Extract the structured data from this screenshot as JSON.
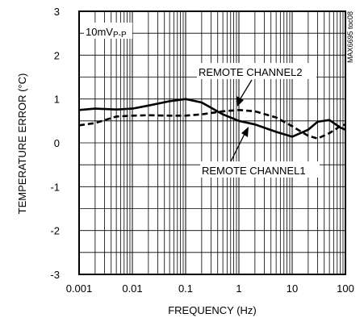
{
  "chart_data": {
    "type": "line",
    "xlabel": "FREQUENCY (Hz)",
    "ylabel": "TEMPERATURE ERROR (°C)",
    "x_scale": "log",
    "xlim": [
      0.001,
      100
    ],
    "ylim": [
      -3,
      3
    ],
    "grid": true,
    "x_ticks": [
      "0.001",
      "0.01",
      "0.1",
      "1",
      "10",
      "100"
    ],
    "y_ticks": [
      "3",
      "2",
      "1",
      "0",
      "-1",
      "-2",
      "-3"
    ],
    "annotations": {
      "condition_main": "10mV",
      "condition_sub": "P-P",
      "doc_code": "MAX6695 toc08"
    },
    "series": [
      {
        "name": "REMOTE CHANNEL1",
        "style": "solid",
        "color": "#000000",
        "x": [
          0.001,
          0.002,
          0.005,
          0.01,
          0.02,
          0.05,
          0.1,
          0.2,
          0.5,
          1,
          2,
          5,
          10,
          20,
          30,
          50,
          80,
          100
        ],
        "y": [
          0.75,
          0.78,
          0.76,
          0.78,
          0.85,
          0.95,
          1.0,
          0.92,
          0.65,
          0.5,
          0.42,
          0.25,
          0.14,
          0.3,
          0.48,
          0.52,
          0.35,
          0.3
        ]
      },
      {
        "name": "REMOTE CHANNEL2",
        "style": "dashed",
        "color": "#000000",
        "x": [
          0.001,
          0.002,
          0.005,
          0.01,
          0.02,
          0.05,
          0.1,
          0.2,
          0.5,
          1,
          2,
          5,
          10,
          15,
          20,
          30,
          50,
          80,
          100
        ],
        "y": [
          0.4,
          0.45,
          0.6,
          0.62,
          0.63,
          0.62,
          0.62,
          0.65,
          0.72,
          0.75,
          0.72,
          0.58,
          0.38,
          0.25,
          0.16,
          0.1,
          0.22,
          0.38,
          0.42
        ]
      }
    ],
    "labels": {
      "channel2": "REMOTE CHANNEL2",
      "channel1": "REMOTE CHANNEL1"
    }
  }
}
